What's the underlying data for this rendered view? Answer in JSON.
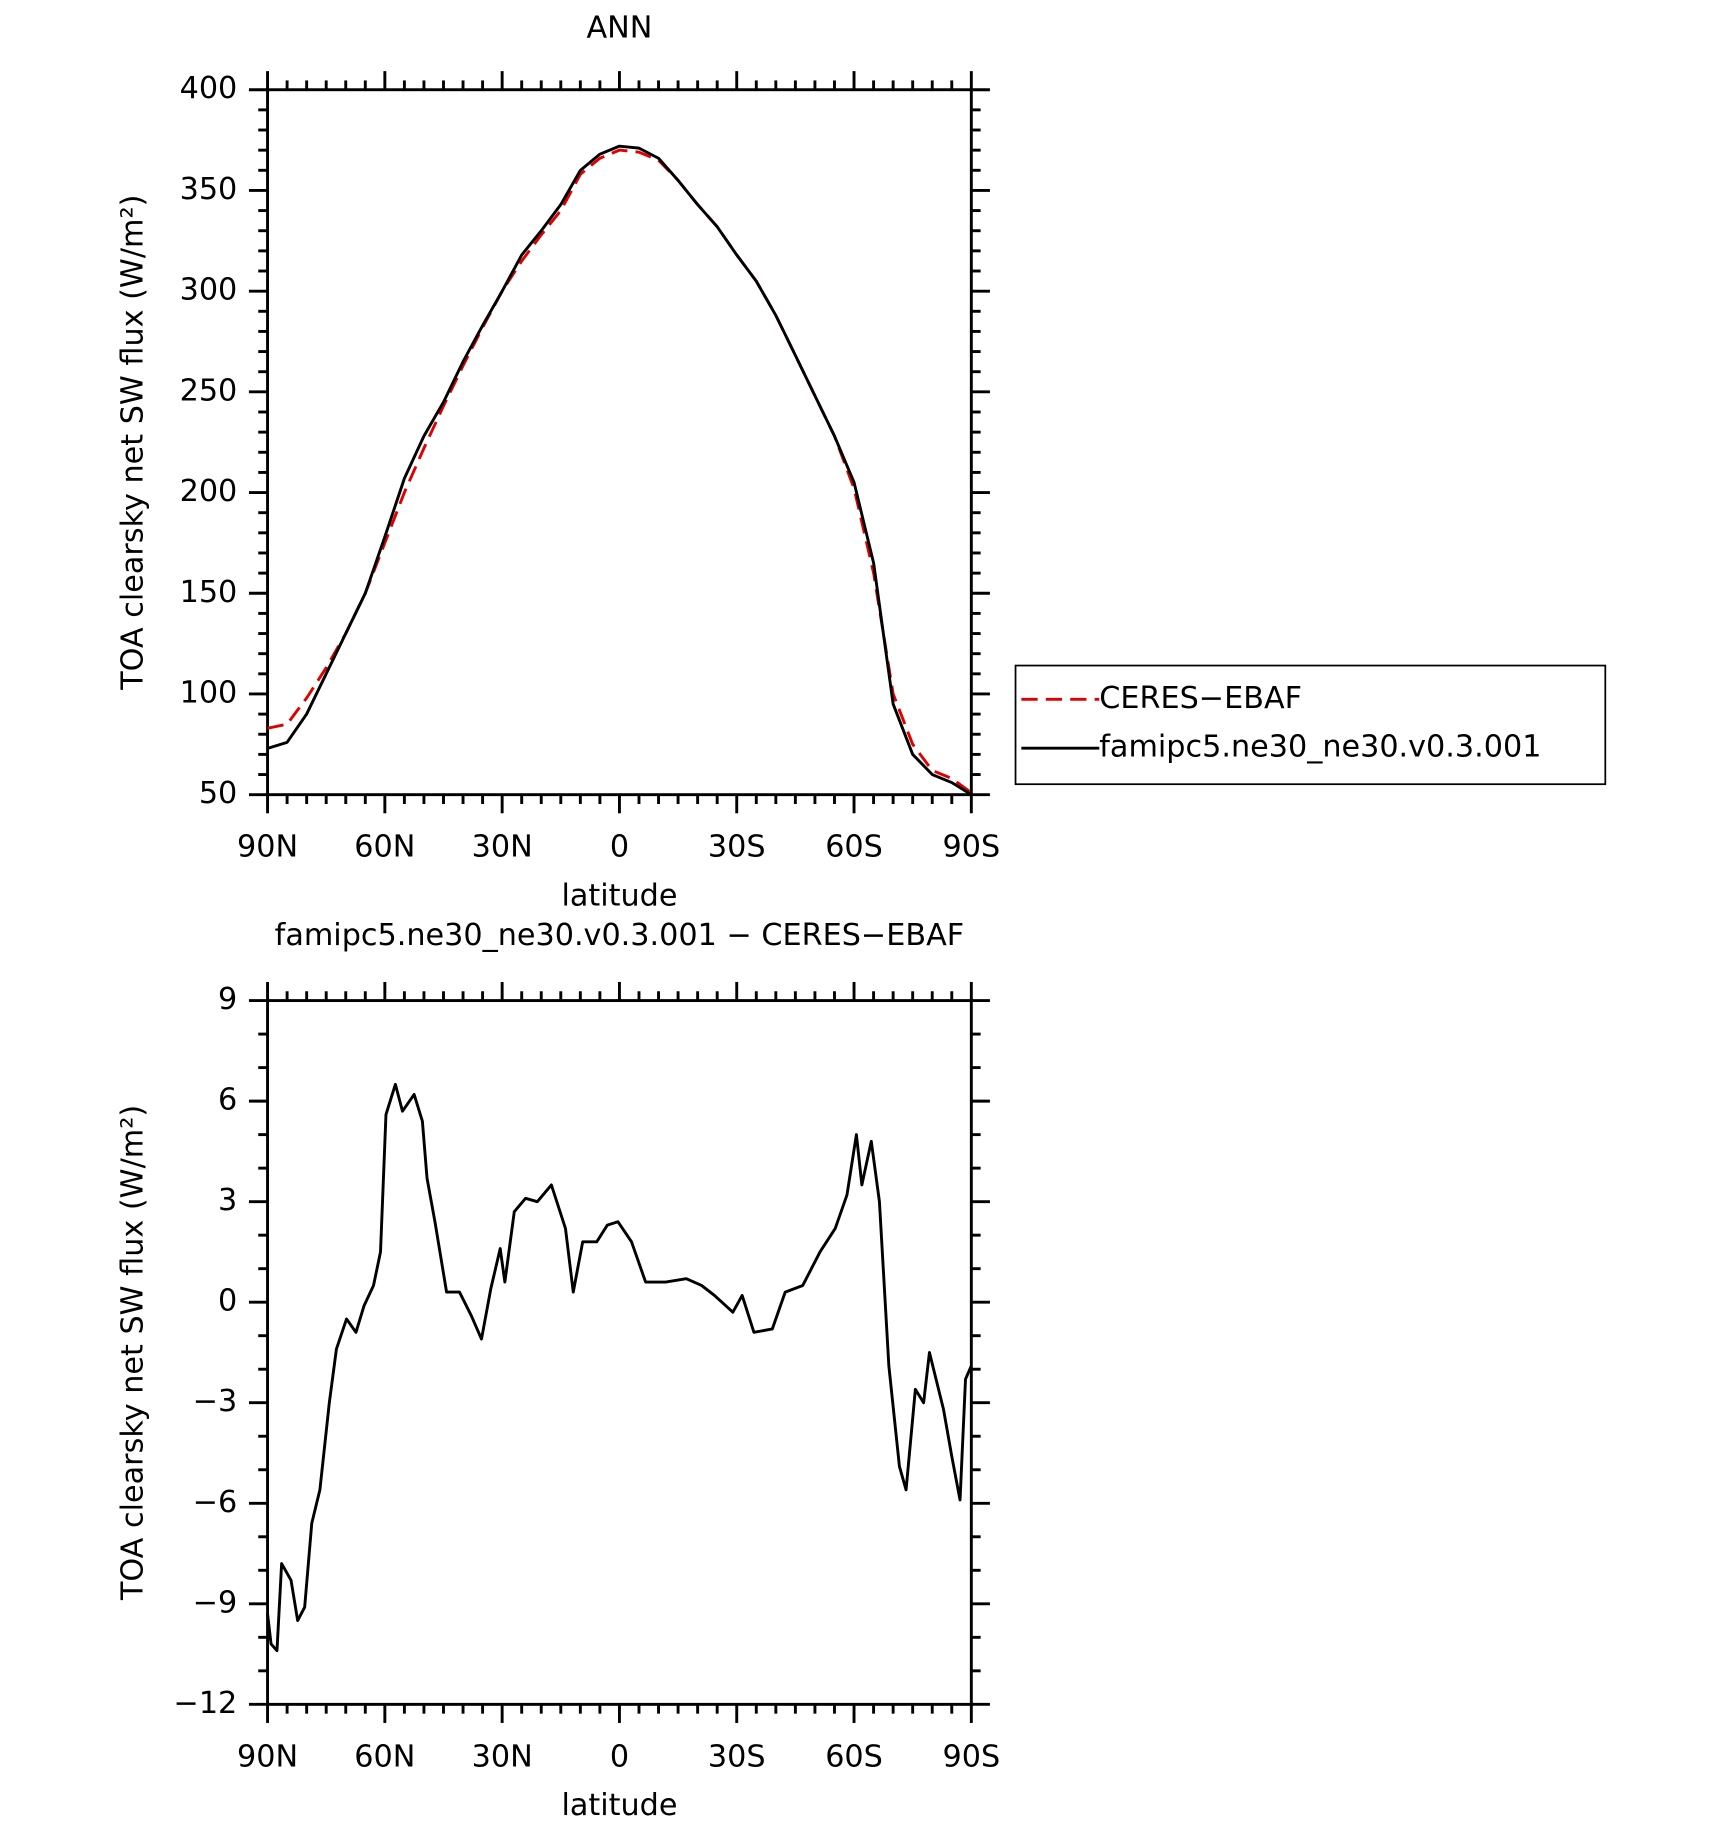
{
  "chart_data": [
    {
      "type": "line",
      "title": "ANN",
      "xlabel": "latitude",
      "ylabel": "TOA clearsky net SW flux (W/m²)",
      "x": [
        90,
        85,
        80,
        75,
        70,
        65,
        60,
        55,
        50,
        45,
        40,
        35,
        30,
        25,
        20,
        15,
        10,
        5,
        0,
        -5,
        -10,
        -15,
        -20,
        -25,
        -30,
        -35,
        -40,
        -45,
        -50,
        -55,
        -60,
        -65,
        -70,
        -75,
        -80,
        -85,
        -90
      ],
      "series": [
        {
          "name": "CERES−EBAF",
          "color": "#e00000",
          "linestyle": "dashed",
          "values": [
            83,
            85,
            98,
            113,
            130,
            150,
            175,
            200,
            222,
            243,
            263,
            282,
            300,
            315,
            328,
            340,
            358,
            366,
            370,
            369,
            365,
            355,
            343,
            332,
            318,
            305,
            288,
            268,
            248,
            228,
            202,
            160,
            100,
            75,
            62,
            58,
            51
          ]
        },
        {
          "name": "famipc5.ne30_ne30.v0.3.001",
          "color": "#000000",
          "linestyle": "solid",
          "values": [
            73,
            76,
            90,
            110,
            130,
            150,
            178,
            207,
            228,
            245,
            265,
            283,
            300,
            318,
            330,
            343,
            360,
            368,
            372,
            371,
            366,
            355,
            343,
            332,
            318,
            305,
            288,
            268,
            248,
            228,
            205,
            165,
            95,
            70,
            60,
            56,
            50
          ]
        }
      ],
      "xlim": [
        90,
        -90
      ],
      "xticks": [
        {
          "value": 90,
          "label": "90N"
        },
        {
          "value": 60,
          "label": "60N"
        },
        {
          "value": 30,
          "label": "30N"
        },
        0,
        {
          "value": -30,
          "label": "30S"
        },
        {
          "value": -60,
          "label": "60S"
        },
        {
          "value": -90,
          "label": "90S"
        }
      ],
      "ylim": [
        50,
        400
      ],
      "yticks": [
        50,
        100,
        150,
        200,
        250,
        300,
        350,
        400
      ],
      "legend": "right"
    },
    {
      "type": "line",
      "title": "famipc5.ne30_ne30.v0.3.001 − CERES−EBAF",
      "xlabel": "latitude",
      "ylabel": "TOA clearsky net SW flux (W/m²)",
      "x": [
        90,
        89.1,
        87.6,
        86.4,
        84,
        82.3,
        80.5,
        78.7,
        76.6,
        74.2,
        72.4,
        69.8,
        67.4,
        65.3,
        62.9,
        61.1,
        59.7,
        57.3,
        55.5,
        52.5,
        50.4,
        49.2,
        47.2,
        44.2,
        40.9,
        37.9,
        35.3,
        32.9,
        30.5,
        29.3,
        26.9,
        24,
        21,
        17.4,
        13.8,
        11.8,
        9.4,
        5.8,
        3.1,
        0.4,
        -3.1,
        -6.7,
        -11.8,
        -17.1,
        -21,
        -24.3,
        -29,
        -31.4,
        -34.4,
        -39.1,
        -42.4,
        -46.9,
        -51.3,
        -55.2,
        -58.2,
        -60.6,
        -62,
        -64.4,
        -66.5,
        -68.9,
        -71.6,
        -73.3,
        -75.7,
        -77.8,
        -79.3,
        -82.9,
        -85,
        -87.1,
        -88.5,
        -90
      ],
      "series": [
        {
          "name": "famipc5.ne30_ne30.v0.3.001",
          "color": "#000000",
          "linestyle": "solid",
          "values": [
            -9.3,
            -10.2,
            -10.4,
            -7.8,
            -8.3,
            -9.5,
            -9.1,
            -6.6,
            -5.6,
            -3.0,
            -1.4,
            -0.5,
            -0.9,
            -0.1,
            0.5,
            1.5,
            5.6,
            6.5,
            5.7,
            6.2,
            5.4,
            3.7,
            2.4,
            0.3,
            0.3,
            -0.4,
            -1.1,
            0.4,
            1.6,
            0.6,
            2.7,
            3.1,
            3.0,
            3.5,
            2.2,
            0.3,
            1.8,
            1.8,
            2.3,
            2.4,
            1.8,
            0.6,
            0.6,
            0.7,
            0.5,
            0.2,
            -0.3,
            0.2,
            -0.9,
            -0.8,
            0.3,
            0.5,
            1.5,
            2.2,
            3.2,
            5.0,
            3.5,
            4.8,
            3.0,
            -1.9,
            -4.9,
            -5.6,
            -2.6,
            -3.0,
            -1.5,
            -3.2,
            -4.6,
            -5.9,
            -2.3,
            -1.9
          ]
        }
      ],
      "xlim": [
        90,
        -90
      ],
      "xticks": [
        {
          "value": 90,
          "label": "90N"
        },
        {
          "value": 60,
          "label": "60N"
        },
        {
          "value": 30,
          "label": "30N"
        },
        0,
        {
          "value": -30,
          "label": "30S"
        },
        {
          "value": -60,
          "label": "60S"
        },
        {
          "value": -90,
          "label": "90S"
        }
      ],
      "ylim": [
        -12,
        9
      ],
      "yticks": [
        {
          "value": -12,
          "label": "−12"
        },
        {
          "value": -9,
          "label": "−9"
        },
        {
          "value": -6,
          "label": "−6"
        },
        {
          "value": -3,
          "label": "−3"
        },
        0,
        3,
        6,
        9
      ]
    }
  ]
}
